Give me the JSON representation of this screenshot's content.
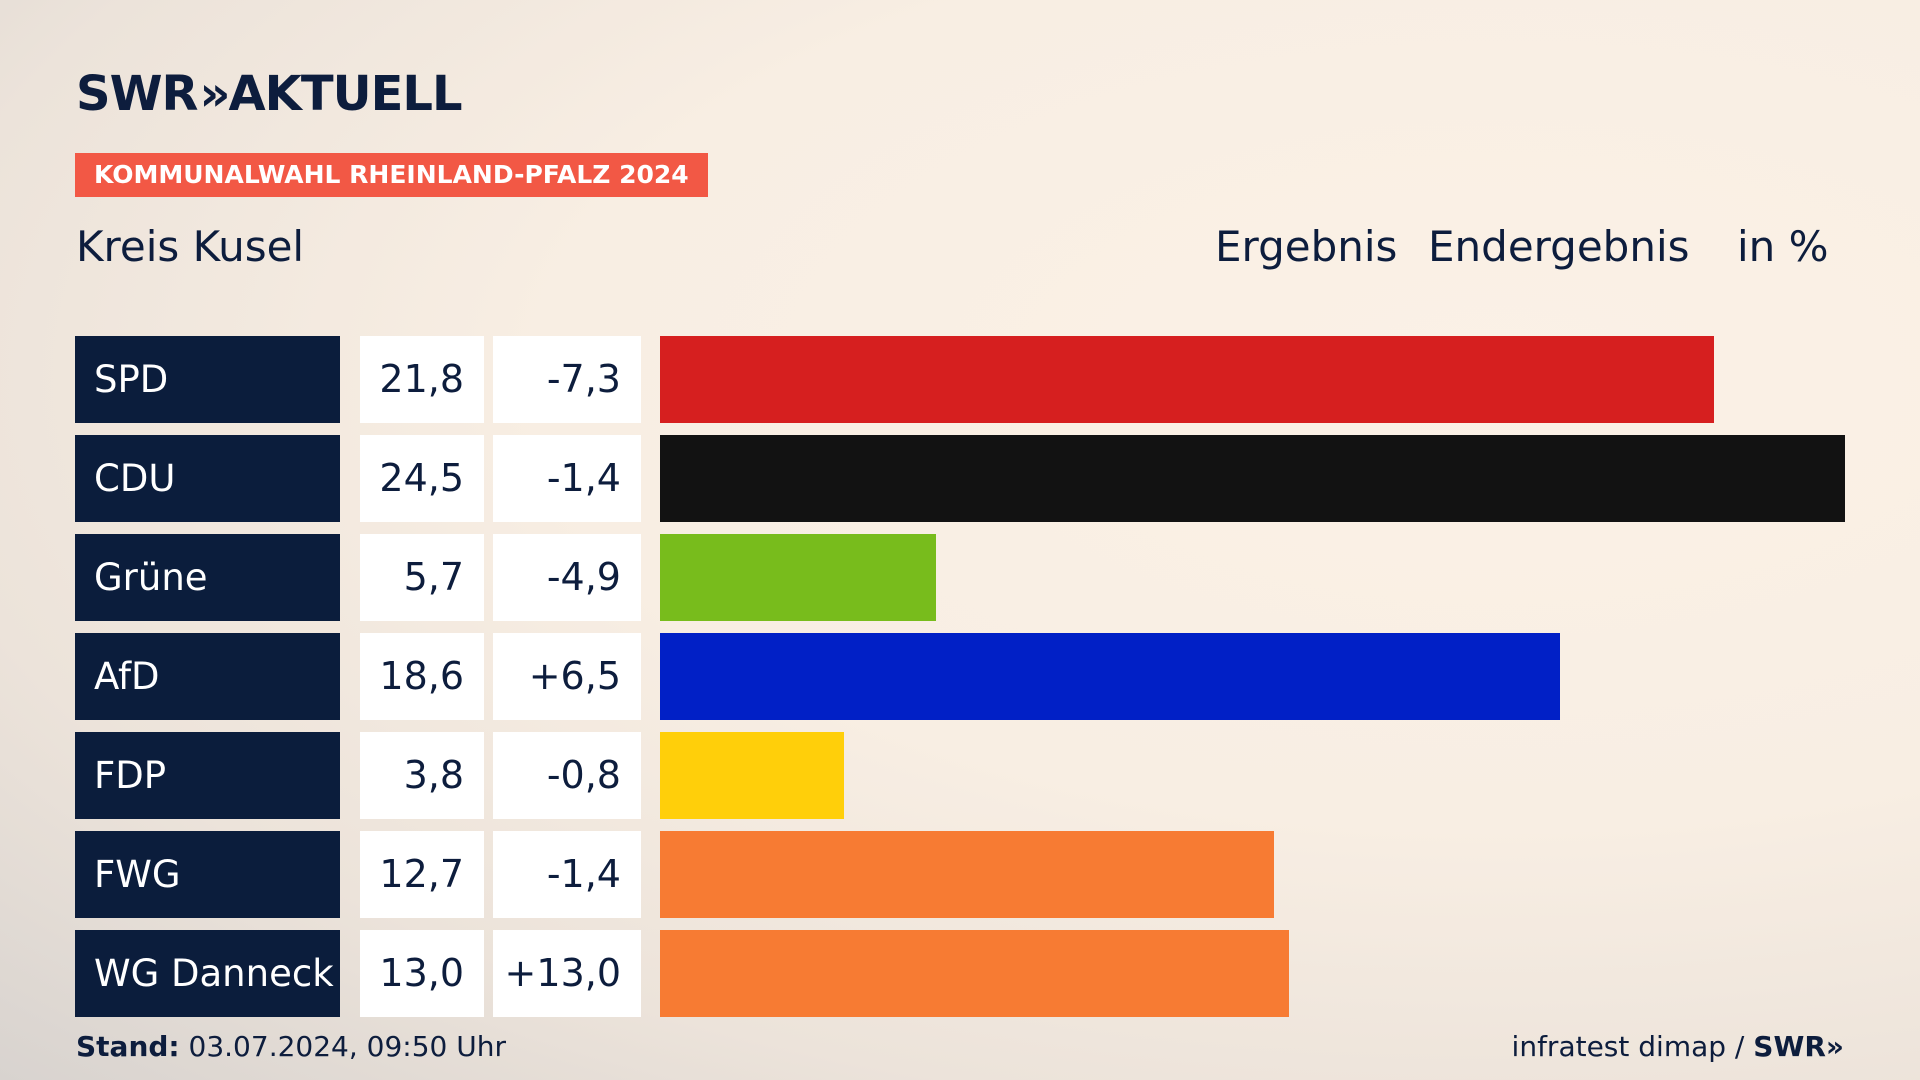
{
  "header": {
    "logo_text": "SWR",
    "logo_chevrons": "»",
    "logo_suffix": "AKTUELL",
    "badge": "KOMMUNALWAHL RHEINLAND-PFALZ 2024",
    "region": "Kreis Kusel",
    "col_result": "Ergebnis",
    "col_status": "Endergebnis",
    "col_unit": "in %"
  },
  "footer": {
    "stand_label": "Stand:",
    "stand_value": "03.07.2024, 09:50 Uhr",
    "source": "infratest dimap /",
    "source_brand": "SWR",
    "source_chevrons": "»"
  },
  "chart_data": {
    "type": "bar",
    "orientation": "horizontal",
    "categories": [
      "SPD",
      "CDU",
      "Grüne",
      "AfD",
      "FDP",
      "FWG",
      "WG Danneck"
    ],
    "values": [
      21.8,
      24.5,
      5.7,
      18.6,
      3.8,
      12.7,
      13.0
    ],
    "value_labels": [
      "21,8",
      "24,5",
      "5,7",
      "18,6",
      "3,8",
      "12,7",
      "13,0"
    ],
    "diff_labels": [
      "-7,3",
      "-1,4",
      "-4,9",
      "+6,5",
      "-0,8",
      "-1,4",
      "+13,0"
    ],
    "colors": [
      "#d61f1f",
      "#121212",
      "#78bc1c",
      "#0120c6",
      "#ffcf0a",
      "#f77b33",
      "#f77b33"
    ],
    "xlim": [
      0,
      24.5
    ],
    "grid": false
  }
}
